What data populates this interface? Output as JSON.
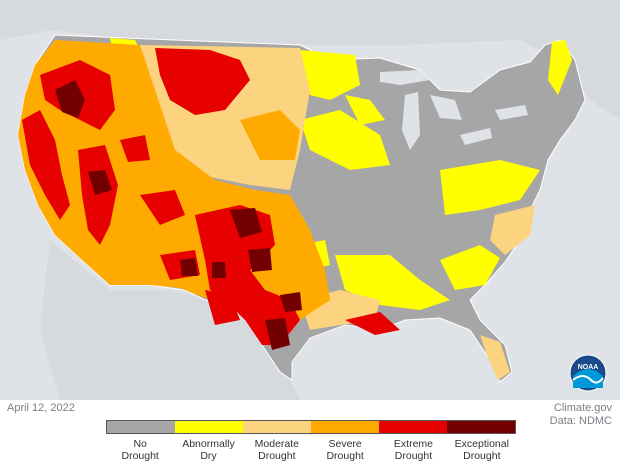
{
  "date": "April 12, 2022",
  "credit": {
    "site": "Climate.gov",
    "source": "Data: NDMC"
  },
  "logo_text": "NOAA",
  "legend": [
    {
      "line1": "No",
      "line2": "Drought",
      "color": "#a6a6a6"
    },
    {
      "line1": "Abnormally",
      "line2": "Dry",
      "color": "#ffff00"
    },
    {
      "line1": "Moderate",
      "line2": "Drought",
      "color": "#fcd37f"
    },
    {
      "line1": "Severe",
      "line2": "Drought",
      "color": "#ffaa00"
    },
    {
      "line1": "Extreme",
      "line2": "Drought",
      "color": "#e60000"
    },
    {
      "line1": "Exceptional",
      "line2": "Drought",
      "color": "#730000"
    }
  ]
}
